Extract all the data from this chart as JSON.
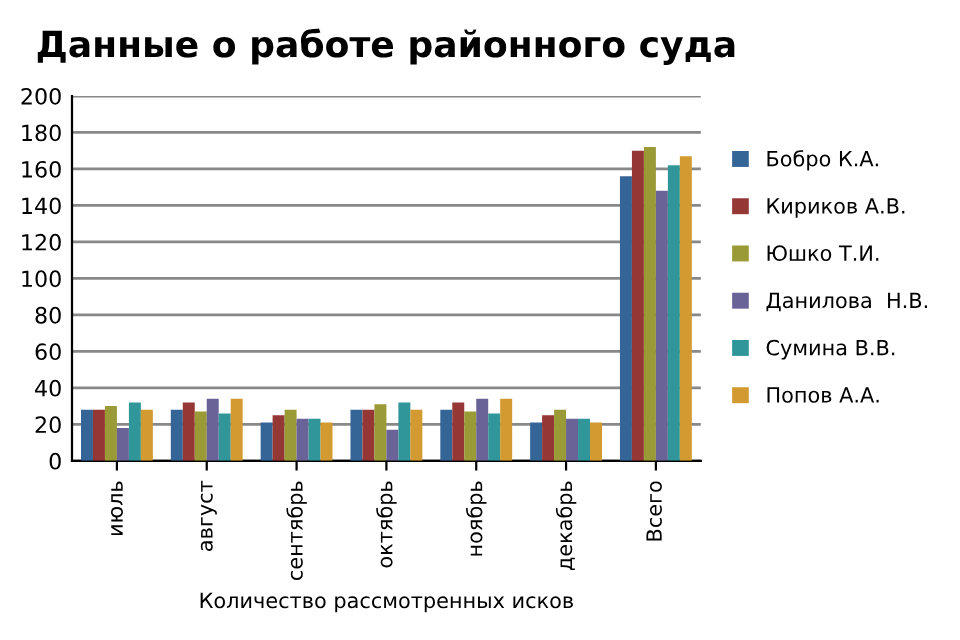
{
  "chart_data": {
    "type": "bar",
    "title": "Данные о работе районного суда",
    "xlabel": "Количество рассмотренных исков",
    "categories": [
      "июль",
      "август",
      "сентябрь",
      "октябрь",
      "ноябрь",
      "декабрь",
      "Всего"
    ],
    "series": [
      {
        "name": "Бобро К.А.",
        "color": "#356597",
        "values": [
          28,
          28,
          21,
          28,
          28,
          21,
          156
        ]
      },
      {
        "name": "Кириков А.В.",
        "color": "#953735",
        "values": [
          28,
          32,
          25,
          28,
          32,
          25,
          170
        ]
      },
      {
        "name": "Юшко Т.И.",
        "color": "#9a9a36",
        "values": [
          30,
          27,
          28,
          31,
          27,
          28,
          172
        ]
      },
      {
        "name": "Данилова  Н.В.",
        "color": "#6a6398",
        "values": [
          18,
          34,
          23,
          17,
          34,
          23,
          148
        ]
      },
      {
        "name": "Сумина В.В.",
        "color": "#31969a",
        "values": [
          32,
          26,
          23,
          32,
          26,
          23,
          162
        ]
      },
      {
        "name": "Попов А.А.",
        "color": "#d29a30",
        "values": [
          28,
          34,
          21,
          28,
          34,
          21,
          167
        ]
      }
    ],
    "ylim": [
      0,
      200
    ],
    "yticks": [
      0,
      20,
      40,
      60,
      80,
      100,
      120,
      140,
      160,
      180,
      200
    ],
    "grid": "y",
    "legend": "right"
  }
}
